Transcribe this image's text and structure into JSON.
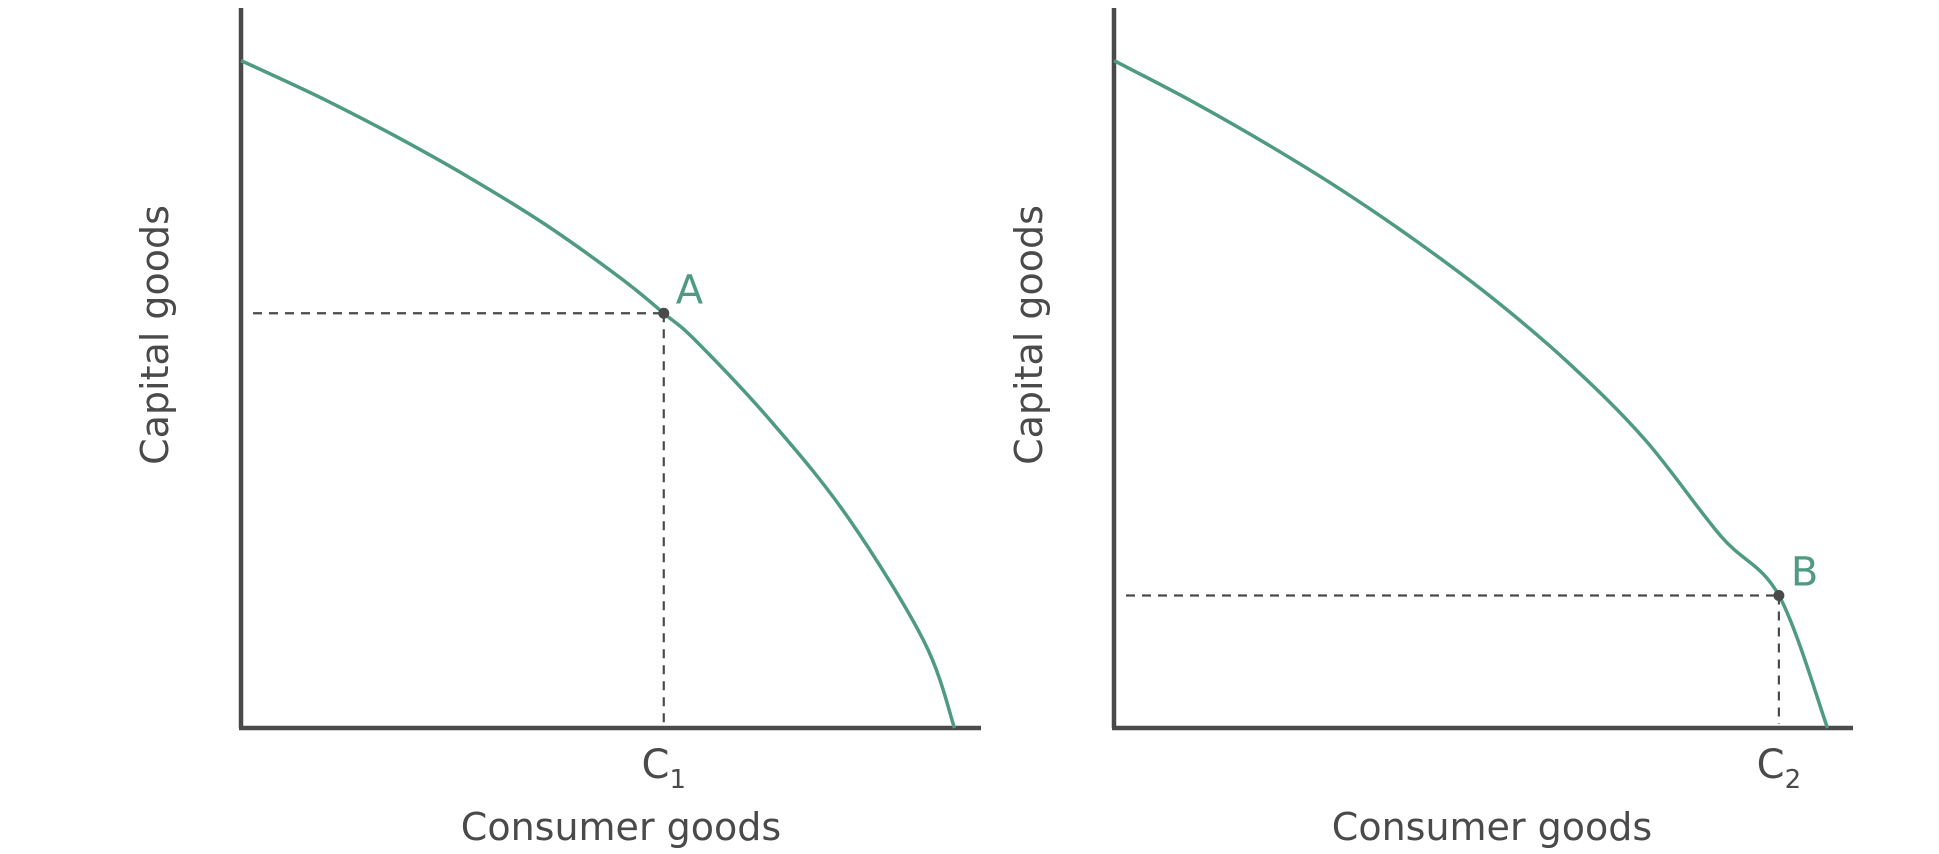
{
  "chart_data": [
    {
      "type": "line",
      "xlabel": "Consumer goods",
      "ylabel": "Capital goods",
      "xlim": [
        0,
        1
      ],
      "ylim": [
        0,
        1
      ],
      "grid": false,
      "series": [
        {
          "x": [
            0,
            0.1,
            0.2,
            0.3,
            0.4,
            0.5,
            0.557,
            0.6,
            0.7,
            0.8,
            0.9,
            0.94
          ],
          "y": [
            0.927,
            0.878,
            0.824,
            0.765,
            0.7,
            0.625,
            0.576,
            0.537,
            0.424,
            0.292,
            0.12,
            0.0
          ]
        }
      ],
      "point": {
        "label": "A",
        "x": 0.557,
        "y": 0.576
      },
      "tick": {
        "main": "C",
        "sub": "1",
        "x": 0.557
      }
    },
    {
      "type": "line",
      "xlabel": "Consumer goods",
      "ylabel": "Capital goods",
      "xlim": [
        0,
        1
      ],
      "ylim": [
        0,
        1
      ],
      "grid": false,
      "series": [
        {
          "x": [
            0,
            0.1,
            0.2,
            0.3,
            0.4,
            0.5,
            0.6,
            0.7,
            0.8,
            0.876,
            0.94
          ],
          "y": [
            0.927,
            0.872,
            0.812,
            0.747,
            0.675,
            0.596,
            0.506,
            0.4,
            0.266,
            0.184,
            0.0
          ]
        }
      ],
      "point": {
        "label": "B",
        "x": 0.876,
        "y": 0.184
      },
      "tick": {
        "main": "C",
        "sub": "2",
        "x": 0.876
      }
    }
  ],
  "colors": {
    "curve": "#4e9a82",
    "axis": "#4a4a4a",
    "point": "#4a4a4a"
  }
}
